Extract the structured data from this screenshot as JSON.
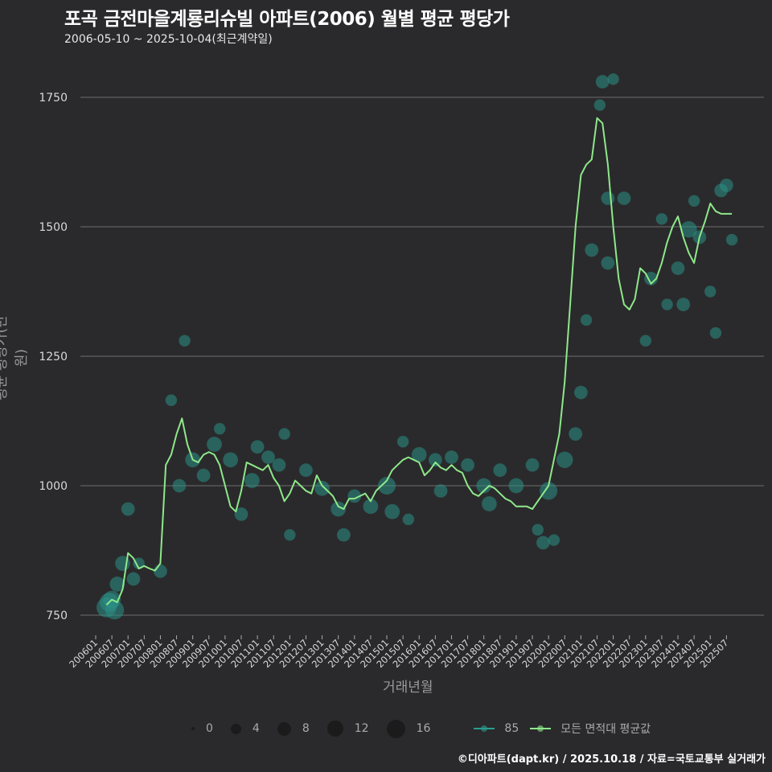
{
  "header": {
    "title": "포곡 금전마을계룡리슈빌 아파트(2006) 월별 평균 평당가",
    "subtitle": "2006-05-10 ~ 2025-10-04(최근계약일)"
  },
  "caption": "©디아파트(dapt.kr) / 2025.10.18 / 자료=국토교통부 실거래가",
  "colors": {
    "background": "#2a2a2c",
    "grid": "#6e6e6e",
    "series_85": "#2a9d8f",
    "avg_line": "#8ee88a",
    "bubble": "#2a8f86"
  },
  "legend": {
    "size_items": [
      {
        "label": "0",
        "size": 4
      },
      {
        "label": "4",
        "size": 13
      },
      {
        "label": "8",
        "size": 17
      },
      {
        "label": "12",
        "size": 20
      },
      {
        "label": "16",
        "size": 23
      }
    ],
    "series": [
      {
        "label": "85",
        "color": "#2a9d8f"
      },
      {
        "label": "모든 면적대 평균값",
        "color": "#8ee88a"
      }
    ]
  },
  "chart_data": {
    "type": "line",
    "title": "포곡 금전마을계룡리슈빌 아파트(2006) 월별 평균 평당가",
    "subtitle": "2006-05-10 ~ 2025-10-04(최근계약일)",
    "xlabel": "거래년월",
    "ylabel": "평균 평당가(만 원)",
    "ylim": [
      720,
      1810
    ],
    "yticks": [
      750,
      1000,
      1250,
      1500,
      1750
    ],
    "grid": true,
    "legend_position": "bottom",
    "xticks": [
      "200601",
      "200607",
      "200701",
      "200707",
      "200801",
      "200807",
      "200901",
      "200907",
      "201001",
      "201007",
      "201101",
      "201107",
      "201201",
      "201207",
      "201301",
      "201307",
      "201401",
      "201407",
      "201501",
      "201507",
      "201601",
      "201607",
      "201701",
      "201707",
      "201801",
      "201807",
      "201901",
      "201907",
      "202001",
      "202007",
      "202101",
      "202107",
      "202201",
      "202207",
      "202301",
      "202307",
      "202401",
      "202407",
      "202501",
      "202507"
    ],
    "series": [
      {
        "name": "모든 면적대 평균값",
        "x": [
          "200605",
          "200607",
          "200609",
          "200611",
          "200701",
          "200703",
          "200705",
          "200707",
          "200709",
          "200711",
          "200801",
          "200803",
          "200805",
          "200807",
          "200809",
          "200811",
          "200901",
          "200903",
          "200905",
          "200907",
          "200909",
          "200911",
          "201001",
          "201003",
          "201005",
          "201007",
          "201009",
          "201011",
          "201101",
          "201103",
          "201105",
          "201107",
          "201109",
          "201111",
          "201201",
          "201203",
          "201205",
          "201207",
          "201209",
          "201211",
          "201301",
          "201303",
          "201305",
          "201307",
          "201309",
          "201311",
          "201401",
          "201403",
          "201405",
          "201407",
          "201409",
          "201411",
          "201501",
          "201503",
          "201505",
          "201507",
          "201509",
          "201511",
          "201601",
          "201603",
          "201605",
          "201607",
          "201609",
          "201611",
          "201701",
          "201703",
          "201705",
          "201707",
          "201709",
          "201711",
          "201801",
          "201803",
          "201805",
          "201807",
          "201809",
          "201811",
          "201901",
          "201903",
          "201905",
          "201907",
          "201909",
          "201911",
          "202001",
          "202003",
          "202005",
          "202007",
          "202009",
          "202011",
          "202101",
          "202103",
          "202105",
          "202107",
          "202109",
          "202111",
          "202201",
          "202203",
          "202205",
          "202207",
          "202209",
          "202211",
          "202301",
          "202303",
          "202305",
          "202307",
          "202309",
          "202311",
          "202401",
          "202403",
          "202405",
          "202407",
          "202409",
          "202411",
          "202501",
          "202503",
          "202505",
          "202507",
          "202509"
        ],
        "values": [
          770,
          780,
          775,
          800,
          870,
          860,
          840,
          845,
          840,
          836,
          850,
          1040,
          1060,
          1100,
          1130,
          1080,
          1050,
          1045,
          1060,
          1065,
          1060,
          1040,
          1000,
          960,
          950,
          990,
          1045,
          1040,
          1035,
          1030,
          1040,
          1015,
          1000,
          970,
          985,
          1010,
          1000,
          990,
          985,
          1020,
          1000,
          990,
          980,
          960,
          955,
          975,
          975,
          980,
          985,
          970,
          990,
          1000,
          1010,
          1030,
          1040,
          1050,
          1055,
          1050,
          1045,
          1020,
          1030,
          1045,
          1035,
          1030,
          1040,
          1030,
          1025,
          1000,
          985,
          980,
          990,
          1000,
          995,
          985,
          975,
          970,
          960,
          960,
          960,
          955,
          970,
          985,
          1000,
          1050,
          1100,
          1200,
          1350,
          1500,
          1600,
          1620,
          1630,
          1710,
          1700,
          1620,
          1500,
          1400,
          1350,
          1340,
          1360,
          1420,
          1410,
          1390,
          1400,
          1430,
          1470,
          1500,
          1520,
          1480,
          1450,
          1430,
          1480,
          1510,
          1545,
          1530,
          1525,
          1525,
          1525
        ],
        "color": "#8ee88a"
      },
      {
        "name": "85",
        "type": "scatter",
        "note": "bubble sizes = transaction counts (0-16)",
        "points": [
          {
            "x": "200605",
            "y": 765,
            "size": 16
          },
          {
            "x": "200606",
            "y": 775,
            "size": 14
          },
          {
            "x": "200607",
            "y": 780,
            "size": 12
          },
          {
            "x": "200608",
            "y": 760,
            "size": 14
          },
          {
            "x": "200609",
            "y": 810,
            "size": 8
          },
          {
            "x": "200611",
            "y": 850,
            "size": 8
          },
          {
            "x": "200701",
            "y": 955,
            "size": 6
          },
          {
            "x": "200703",
            "y": 820,
            "size": 6
          },
          {
            "x": "200705",
            "y": 850,
            "size": 4
          },
          {
            "x": "200801",
            "y": 835,
            "size": 6
          },
          {
            "x": "200805",
            "y": 1165,
            "size": 4
          },
          {
            "x": "200808",
            "y": 1000,
            "size": 6
          },
          {
            "x": "200810",
            "y": 1280,
            "size": 4
          },
          {
            "x": "200901",
            "y": 1050,
            "size": 8
          },
          {
            "x": "200905",
            "y": 1020,
            "size": 6
          },
          {
            "x": "200909",
            "y": 1080,
            "size": 8
          },
          {
            "x": "200911",
            "y": 1110,
            "size": 4
          },
          {
            "x": "201003",
            "y": 1050,
            "size": 8
          },
          {
            "x": "201007",
            "y": 945,
            "size": 6
          },
          {
            "x": "201011",
            "y": 1010,
            "size": 8
          },
          {
            "x": "201101",
            "y": 1075,
            "size": 6
          },
          {
            "x": "201105",
            "y": 1055,
            "size": 6
          },
          {
            "x": "201109",
            "y": 1040,
            "size": 6
          },
          {
            "x": "201111",
            "y": 1100,
            "size": 4
          },
          {
            "x": "201201",
            "y": 905,
            "size": 4
          },
          {
            "x": "201207",
            "y": 1030,
            "size": 6
          },
          {
            "x": "201301",
            "y": 995,
            "size": 8
          },
          {
            "x": "201307",
            "y": 955,
            "size": 8
          },
          {
            "x": "201309",
            "y": 905,
            "size": 6
          },
          {
            "x": "201401",
            "y": 980,
            "size": 6
          },
          {
            "x": "201407",
            "y": 960,
            "size": 8
          },
          {
            "x": "201501",
            "y": 1000,
            "size": 12
          },
          {
            "x": "201503",
            "y": 950,
            "size": 8
          },
          {
            "x": "201507",
            "y": 1085,
            "size": 4
          },
          {
            "x": "201509",
            "y": 935,
            "size": 4
          },
          {
            "x": "201601",
            "y": 1060,
            "size": 8
          },
          {
            "x": "201607",
            "y": 1050,
            "size": 6
          },
          {
            "x": "201609",
            "y": 990,
            "size": 6
          },
          {
            "x": "201701",
            "y": 1055,
            "size": 6
          },
          {
            "x": "201707",
            "y": 1040,
            "size": 6
          },
          {
            "x": "201801",
            "y": 1000,
            "size": 8
          },
          {
            "x": "201803",
            "y": 965,
            "size": 8
          },
          {
            "x": "201807",
            "y": 1030,
            "size": 6
          },
          {
            "x": "201901",
            "y": 1000,
            "size": 8
          },
          {
            "x": "201907",
            "y": 1040,
            "size": 6
          },
          {
            "x": "201909",
            "y": 915,
            "size": 4
          },
          {
            "x": "201911",
            "y": 890,
            "size": 6
          },
          {
            "x": "202001",
            "y": 990,
            "size": 12
          },
          {
            "x": "202003",
            "y": 895,
            "size": 4
          },
          {
            "x": "202007",
            "y": 1050,
            "size": 10
          },
          {
            "x": "202011",
            "y": 1100,
            "size": 6
          },
          {
            "x": "202101",
            "y": 1180,
            "size": 6
          },
          {
            "x": "202103",
            "y": 1320,
            "size": 4
          },
          {
            "x": "202105",
            "y": 1455,
            "size": 6
          },
          {
            "x": "202108",
            "y": 1735,
            "size": 4
          },
          {
            "x": "202109",
            "y": 1780,
            "size": 6
          },
          {
            "x": "202111",
            "y": 1430,
            "size": 6
          },
          {
            "x": "202111",
            "y": 1555,
            "size": 6
          },
          {
            "x": "202201",
            "y": 1785,
            "size": 4
          },
          {
            "x": "202205",
            "y": 1555,
            "size": 6
          },
          {
            "x": "202301",
            "y": 1280,
            "size": 4
          },
          {
            "x": "202303",
            "y": 1400,
            "size": 6
          },
          {
            "x": "202307",
            "y": 1515,
            "size": 4
          },
          {
            "x": "202309",
            "y": 1350,
            "size": 4
          },
          {
            "x": "202401",
            "y": 1420,
            "size": 6
          },
          {
            "x": "202403",
            "y": 1350,
            "size": 6
          },
          {
            "x": "202405",
            "y": 1495,
            "size": 10
          },
          {
            "x": "202407",
            "y": 1550,
            "size": 4
          },
          {
            "x": "202409",
            "y": 1480,
            "size": 6
          },
          {
            "x": "202501",
            "y": 1375,
            "size": 4
          },
          {
            "x": "202503",
            "y": 1295,
            "size": 4
          },
          {
            "x": "202505",
            "y": 1570,
            "size": 6
          },
          {
            "x": "202507",
            "y": 1580,
            "size": 6
          },
          {
            "x": "202509",
            "y": 1475,
            "size": 4
          }
        ],
        "color": "#2a9d8f"
      }
    ]
  }
}
